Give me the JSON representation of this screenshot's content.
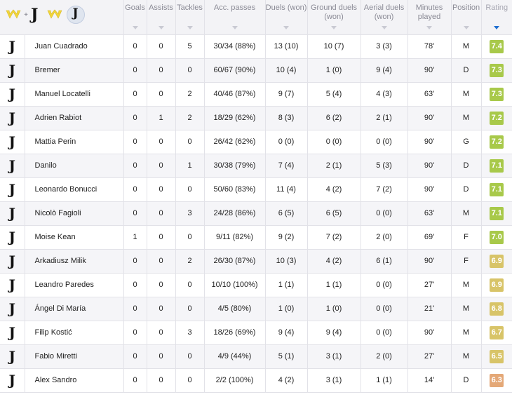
{
  "headers": {
    "goals": "Goals",
    "assists": "Assists",
    "tackles": "Tackles",
    "acc_passes": "Acc. passes",
    "duels": "Duels (won)",
    "ground_duels": "Ground duels (won)",
    "aerial_duels": "Aerial duels (won)",
    "minutes": "Minutes played",
    "position": "Position",
    "rating": "Rating"
  },
  "team_logo_glyph": "J",
  "header_plus": "+",
  "colors": {
    "rating_high": "#a8c94a",
    "rating_mid": "#d8c468",
    "rating_low": "#e4a877",
    "sort_arrow": "#1f6fd1",
    "verona_yellow": "#f2d63a"
  },
  "icons": {
    "team_a": "hellas-verona-logo-icon",
    "team_b": "juventus-logo-icon",
    "sort": "sort-arrow-icon"
  },
  "players": [
    {
      "name": "Juan Cuadrado",
      "goals": "0",
      "assists": "0",
      "tackles": "5",
      "passes": "30/34 (88%)",
      "duels": "13 (10)",
      "ground": "10 (7)",
      "aerial": "3 (3)",
      "minutes": "78'",
      "position": "M",
      "rating": "7.4",
      "tier": "high"
    },
    {
      "name": "Bremer",
      "goals": "0",
      "assists": "0",
      "tackles": "0",
      "passes": "60/67 (90%)",
      "duels": "10 (4)",
      "ground": "1 (0)",
      "aerial": "9 (4)",
      "minutes": "90'",
      "position": "D",
      "rating": "7.3",
      "tier": "high"
    },
    {
      "name": "Manuel Locatelli",
      "goals": "0",
      "assists": "0",
      "tackles": "2",
      "passes": "40/46 (87%)",
      "duels": "9 (7)",
      "ground": "5 (4)",
      "aerial": "4 (3)",
      "minutes": "63'",
      "position": "M",
      "rating": "7.3",
      "tier": "high"
    },
    {
      "name": "Adrien Rabiot",
      "goals": "0",
      "assists": "1",
      "tackles": "2",
      "passes": "18/29 (62%)",
      "duels": "8 (3)",
      "ground": "6 (2)",
      "aerial": "2 (1)",
      "minutes": "90'",
      "position": "M",
      "rating": "7.2",
      "tier": "high"
    },
    {
      "name": "Mattia Perin",
      "goals": "0",
      "assists": "0",
      "tackles": "0",
      "passes": "26/42 (62%)",
      "duels": "0 (0)",
      "ground": "0 (0)",
      "aerial": "0 (0)",
      "minutes": "90'",
      "position": "G",
      "rating": "7.2",
      "tier": "high"
    },
    {
      "name": "Danilo",
      "goals": "0",
      "assists": "0",
      "tackles": "1",
      "passes": "30/38 (79%)",
      "duels": "7 (4)",
      "ground": "2 (1)",
      "aerial": "5 (3)",
      "minutes": "90'",
      "position": "D",
      "rating": "7.1",
      "tier": "high"
    },
    {
      "name": "Leonardo Bonucci",
      "goals": "0",
      "assists": "0",
      "tackles": "0",
      "passes": "50/60 (83%)",
      "duels": "11 (4)",
      "ground": "4 (2)",
      "aerial": "7 (2)",
      "minutes": "90'",
      "position": "D",
      "rating": "7.1",
      "tier": "high"
    },
    {
      "name": "Nicolò Fagioli",
      "goals": "0",
      "assists": "0",
      "tackles": "3",
      "passes": "24/28 (86%)",
      "duels": "6 (5)",
      "ground": "6 (5)",
      "aerial": "0 (0)",
      "minutes": "63'",
      "position": "M",
      "rating": "7.1",
      "tier": "high"
    },
    {
      "name": "Moise Kean",
      "goals": "1",
      "assists": "0",
      "tackles": "0",
      "passes": "9/11 (82%)",
      "duels": "9 (2)",
      "ground": "7 (2)",
      "aerial": "2 (0)",
      "minutes": "69'",
      "position": "F",
      "rating": "7.0",
      "tier": "high"
    },
    {
      "name": "Arkadiusz Milik",
      "goals": "0",
      "assists": "0",
      "tackles": "2",
      "passes": "26/30 (87%)",
      "duels": "10 (3)",
      "ground": "4 (2)",
      "aerial": "6 (1)",
      "minutes": "90'",
      "position": "F",
      "rating": "6.9",
      "tier": "mid"
    },
    {
      "name": "Leandro Paredes",
      "goals": "0",
      "assists": "0",
      "tackles": "0",
      "passes": "10/10 (100%)",
      "duels": "1 (1)",
      "ground": "1 (1)",
      "aerial": "0 (0)",
      "minutes": "27'",
      "position": "M",
      "rating": "6.9",
      "tier": "mid"
    },
    {
      "name": "Ángel Di María",
      "goals": "0",
      "assists": "0",
      "tackles": "0",
      "passes": "4/5 (80%)",
      "duels": "1 (0)",
      "ground": "1 (0)",
      "aerial": "0 (0)",
      "minutes": "21'",
      "position": "M",
      "rating": "6.8",
      "tier": "mid"
    },
    {
      "name": "Filip Kostić",
      "goals": "0",
      "assists": "0",
      "tackles": "3",
      "passes": "18/26 (69%)",
      "duels": "9 (4)",
      "ground": "9 (4)",
      "aerial": "0 (0)",
      "minutes": "90'",
      "position": "M",
      "rating": "6.7",
      "tier": "mid"
    },
    {
      "name": "Fabio Miretti",
      "goals": "0",
      "assists": "0",
      "tackles": "0",
      "passes": "4/9 (44%)",
      "duels": "5 (1)",
      "ground": "3 (1)",
      "aerial": "2 (0)",
      "minutes": "27'",
      "position": "M",
      "rating": "6.5",
      "tier": "mid"
    },
    {
      "name": "Alex Sandro",
      "goals": "0",
      "assists": "0",
      "tackles": "0",
      "passes": "2/2 (100%)",
      "duels": "4 (2)",
      "ground": "3 (1)",
      "aerial": "1 (1)",
      "minutes": "14'",
      "position": "D",
      "rating": "6.3",
      "tier": "low"
    }
  ]
}
